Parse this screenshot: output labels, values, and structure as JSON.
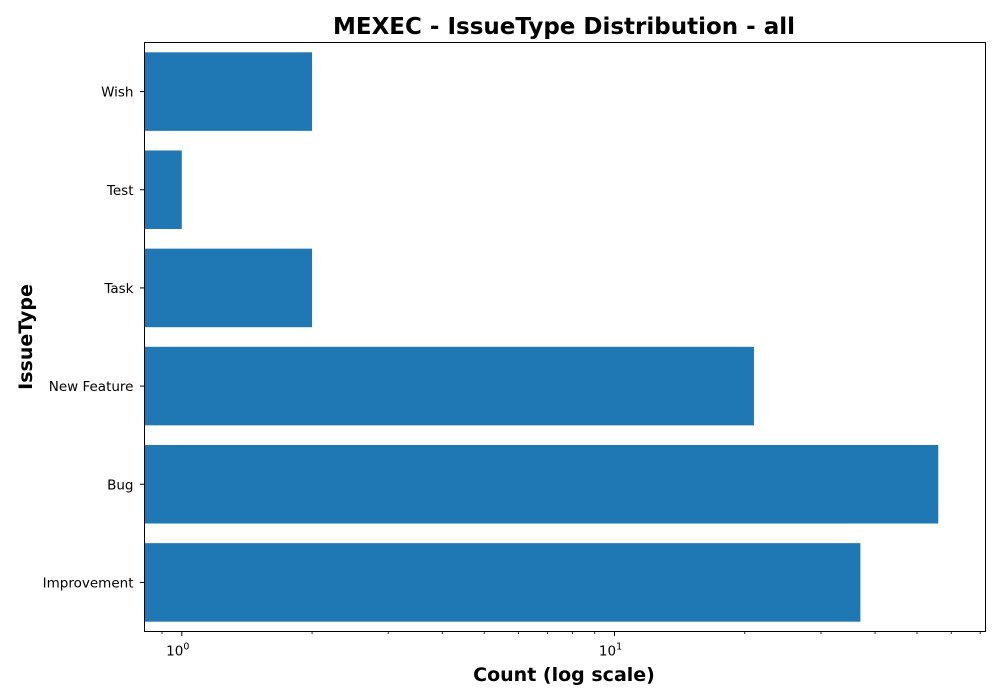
{
  "chart_data": {
    "type": "bar",
    "orientation": "horizontal",
    "title": "MEXEC - IssueType Distribution - all",
    "xlabel": "Count (log scale)",
    "ylabel": "IssueType",
    "xscale": "log",
    "xlim": [
      0.82,
      72
    ],
    "x_ticks": [
      {
        "base": "10",
        "exp": "0",
        "value": 1
      },
      {
        "base": "10",
        "exp": "1",
        "value": 10
      }
    ],
    "categories": [
      "Improvement",
      "Bug",
      "New Feature",
      "Task",
      "Test",
      "Wish"
    ],
    "values": [
      37,
      56,
      21,
      2,
      1,
      2
    ],
    "bar_color": "#1f77b4",
    "grid": false
  }
}
